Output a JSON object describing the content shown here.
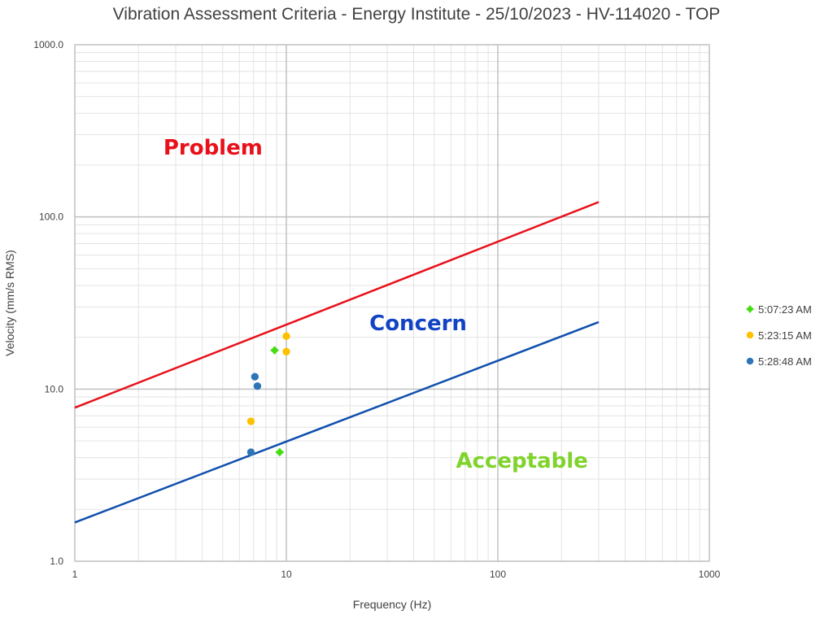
{
  "chart_data": {
    "type": "scatter",
    "title": "Vibration Assessment Criteria - Energy Institute - 25/10/2023 - HV-114020 - TOP",
    "xlabel": "Frequency (Hz)",
    "ylabel": "Velocity (mm/s RMS)",
    "xscale": "log",
    "yscale": "log",
    "xlim": [
      1,
      1000
    ],
    "ylim": [
      1,
      1000
    ],
    "x_ticks": [
      "1",
      "10",
      "100",
      "1000"
    ],
    "y_ticks": [
      "1.0",
      "10.0",
      "100.0",
      "1000.0"
    ],
    "grid": true,
    "legend_position": "right",
    "zone_labels": [
      {
        "text": "Problem",
        "color": "#e8101a",
        "x": 4.5,
        "y": 230
      },
      {
        "text": "Concern",
        "color": "#1144c4",
        "x": 42,
        "y": 22
      },
      {
        "text": "Acceptable",
        "color": "#7fd32a",
        "x": 130,
        "y": 3.5
      }
    ],
    "threshold_lines": [
      {
        "name": "Problem threshold",
        "color": "#e8101a",
        "x": [
          1,
          300
        ],
        "y": [
          7.8,
          122
        ]
      },
      {
        "name": "Concern threshold",
        "color": "#0f4fad",
        "x": [
          1,
          300
        ],
        "y": [
          1.68,
          24.5
        ]
      }
    ],
    "series": [
      {
        "name": "5:07:23 AM",
        "color": "#44dd11",
        "marker": "diamond",
        "points": [
          [
            8.8,
            16.8
          ],
          [
            9.3,
            4.3
          ]
        ]
      },
      {
        "name": "5:23:15 AM",
        "color": "#ffc000",
        "marker": "circle",
        "points": [
          [
            10.0,
            20.3
          ],
          [
            10.0,
            16.5
          ],
          [
            6.8,
            6.5
          ]
        ]
      },
      {
        "name": "5:28:48 AM",
        "color": "#2e75b6",
        "marker": "circle",
        "points": [
          [
            7.1,
            11.8
          ],
          [
            7.3,
            10.4
          ],
          [
            6.8,
            4.3
          ]
        ]
      }
    ]
  }
}
